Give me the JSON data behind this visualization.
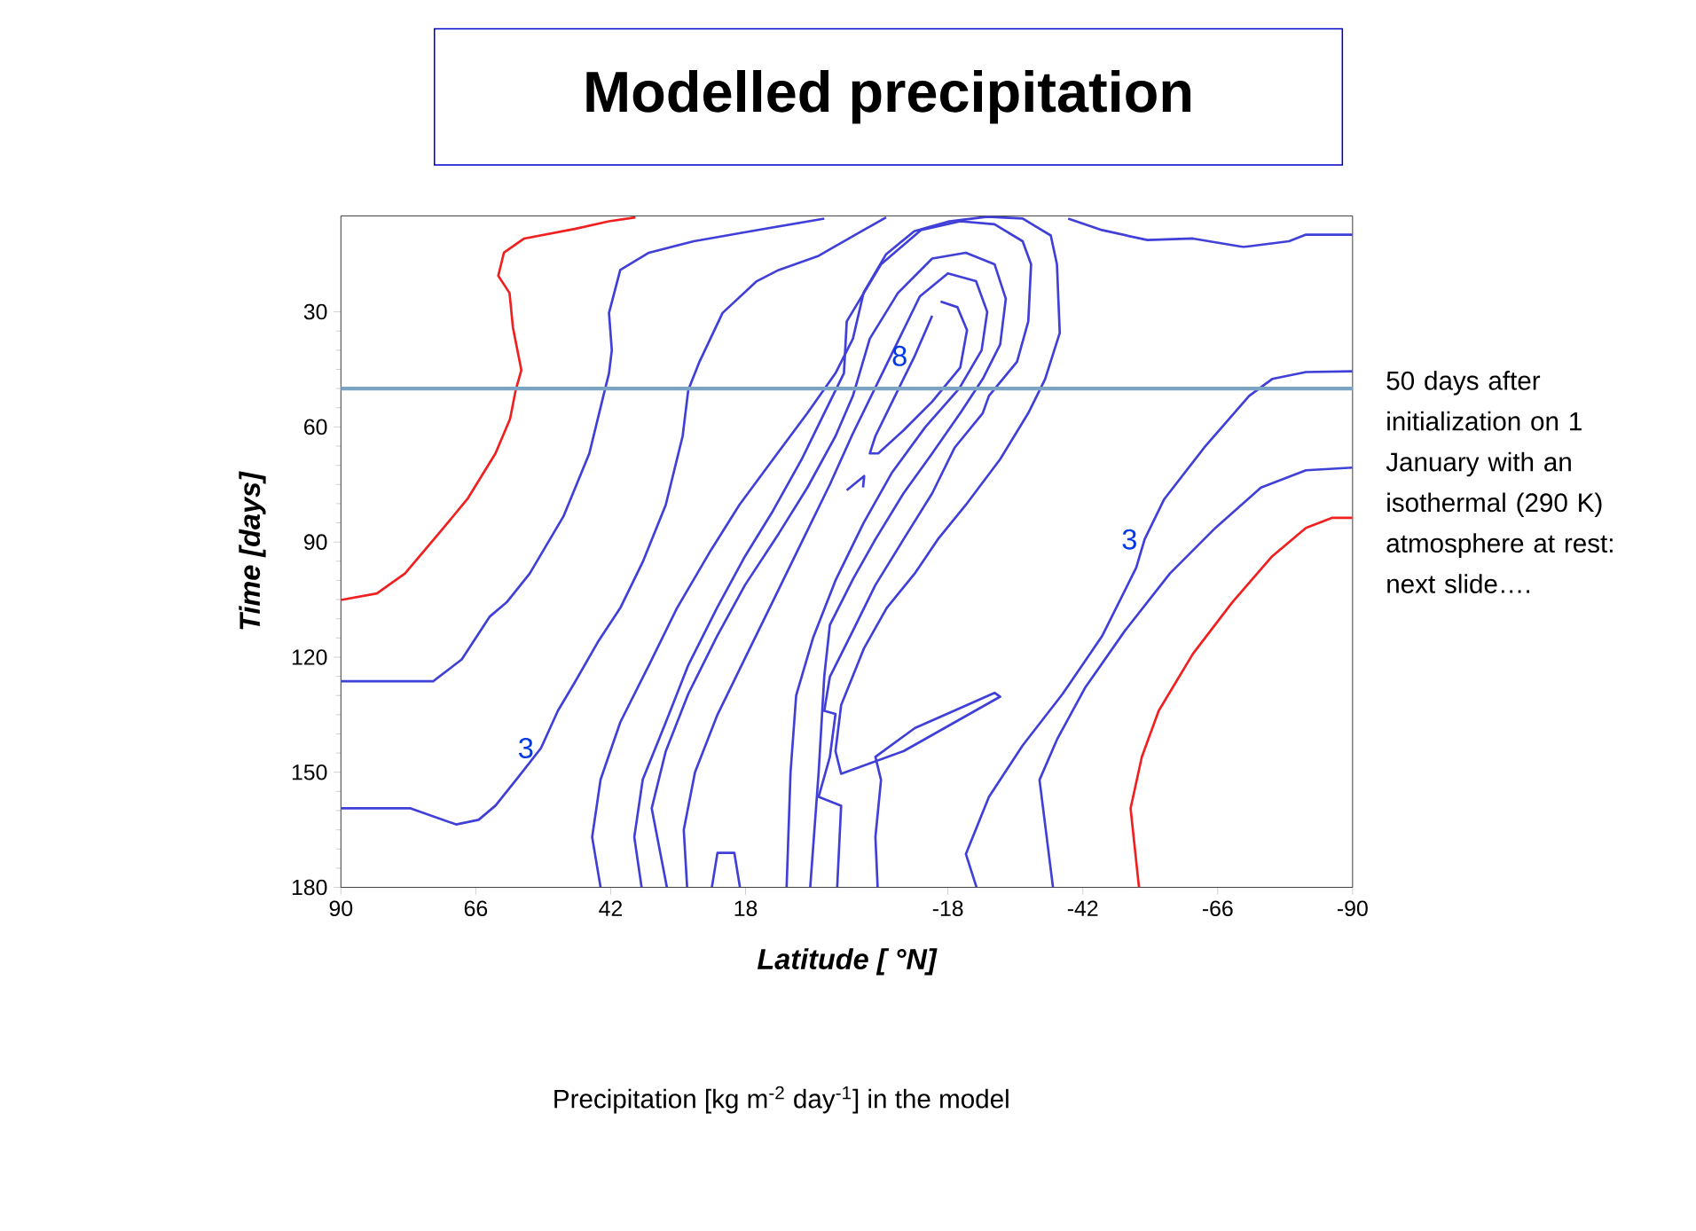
{
  "chart_data": {
    "type": "line",
    "title": "Modelled precipitation",
    "xlabel": "Latitude [ °N]",
    "ylabel": "Time [days]",
    "xlim": [
      90,
      -90
    ],
    "ylim": [
      180,
      5
    ],
    "xticks": [
      90,
      66,
      42,
      18,
      -18,
      -42,
      -66,
      -90
    ],
    "yticks": [
      30,
      60,
      90,
      120,
      150,
      180
    ],
    "series": [
      {
        "color": "#f02020",
        "x": [
          37.6,
          42.3,
          48.4,
          57.4,
          61.0,
          62.0,
          60.0,
          59.4,
          57.9,
          58.9,
          59.9,
          62.5,
          67.5,
          72.6,
          78.6,
          83.6,
          90
        ],
        "values": [
          5.4,
          6.4,
          8.4,
          10.9,
          14.6,
          20.6,
          25.1,
          34.0,
          45.2,
          50.4,
          57.9,
          66.9,
          78.8,
          87.8,
          98.2,
          103.4,
          105.1
        ]
      },
      {
        "color": "#4040d8",
        "x": [
          90,
          73.6,
          68.5,
          63.5,
          60.5,
          56.4,
          50.4,
          45.8,
          43.3,
          42.3,
          41.8,
          42.3,
          40.3,
          35.2,
          27.2,
          17.1,
          4.0
        ],
        "values": [
          126.3,
          126.3,
          120.6,
          109.4,
          105.7,
          98.2,
          83.3,
          66.9,
          51.9,
          46.0,
          40.0,
          30.3,
          19.1,
          14.6,
          11.6,
          9.0,
          5.7
        ]
      },
      {
        "color": "#4040d8",
        "x": [
          90,
          77.6,
          69.5,
          65.5,
          62.5,
          58.4,
          54.4,
          51.4,
          48.4,
          44.3,
          40.3,
          36.3,
          32.2,
          29.2,
          28.2,
          26.2,
          22.1,
          16.1,
          12.1,
          5.0,
          -3.0,
          -7.0
        ],
        "values": [
          159.4,
          159.4,
          163.6,
          162.4,
          158.7,
          151.2,
          143.7,
          134.0,
          126.6,
          116.1,
          107.2,
          95.2,
          80.3,
          62.4,
          50.4,
          43.0,
          30.3,
          22.1,
          19.1,
          15.4,
          8.7,
          5.4
        ]
      },
      {
        "color": "#4040d8",
        "x": [
          43.8,
          45.3,
          43.8,
          40.3,
          35.2,
          30.2,
          24.2,
          19.1,
          13.1,
          7.0,
          2.0,
          -1.1,
          -3,
          -7,
          -12,
          -18,
          -25,
          -31.3,
          -36.3,
          -37.4,
          -37.9,
          -35.3,
          -32.3,
          -27.3,
          -21.2,
          -16.2,
          -12.1,
          -7.1,
          -3.1,
          1,
          2,
          1,
          -10.1,
          -27.3,
          -26.3,
          -12.1,
          -5.1,
          -6.1,
          -5.1,
          -5.5
        ],
        "values": [
          180,
          166.9,
          151.9,
          137.0,
          122.1,
          107.2,
          92.2,
          80.3,
          68.4,
          56.4,
          46.0,
          37.0,
          25,
          15,
          9,
          6.5,
          5.2,
          5.7,
          10.1,
          17.6,
          35.5,
          47.5,
          56.4,
          68.4,
          80.3,
          89.3,
          98.2,
          107.2,
          117.6,
          132.5,
          144.5,
          150.4,
          144.5,
          130.3,
          129.3,
          138.5,
          146,
          152,
          166.9,
          180
        ]
      },
      {
        "color": "#4040d8",
        "x": [
          36.5,
          37.8,
          36.3,
          32.2,
          28.2,
          23.1,
          18.1,
          13.1,
          8.0,
          4.0,
          0.5,
          0,
          -6.1,
          -13.2,
          -20.2,
          -26.3,
          -31.3,
          -32.8,
          -32.3,
          -30.3,
          -25.3,
          -24.2,
          -19.2,
          -15.2,
          -10.1,
          -5.1,
          -1.1,
          3.0,
          4.0,
          2.0,
          3.0,
          5,
          1,
          1.7
        ],
        "values": [
          180,
          166.9,
          151.9,
          137,
          122.1,
          107.2,
          93.7,
          81.8,
          68.4,
          56.4,
          46,
          32.5,
          17.6,
          8.7,
          6.4,
          7.2,
          11.6,
          17.6,
          32.5,
          43,
          51.9,
          56.4,
          65.4,
          77.3,
          89.3,
          101.2,
          113.1,
          125.1,
          134,
          134.8,
          146,
          156.4,
          158.7,
          180
        ]
      },
      {
        "color": "#4040d8",
        "x": [
          32,
          34.7,
          32.2,
          28.2,
          23.1,
          18.1,
          12.1,
          7.0,
          2.0,
          -1.1,
          -4.1,
          -9.1,
          -15.2,
          -21.2,
          -26.3,
          -28.3,
          -27.3,
          -24.2,
          -20.2,
          -15.2,
          -10.1,
          -5.1,
          -1.1,
          3,
          4,
          5,
          6.5
        ],
        "values": [
          180,
          159.4,
          144.5,
          129.6,
          114.6,
          101.2,
          87.8,
          75.8,
          62.4,
          51.9,
          37,
          25.1,
          16.1,
          14.6,
          17.6,
          26.6,
          38.5,
          47.5,
          56.4,
          66.9,
          77.3,
          89.3,
          99.7,
          111.6,
          125,
          150,
          180
        ]
      },
      {
        "color": "#4040d8",
        "x": [
          28.4,
          29,
          27,
          23,
          18,
          13,
          8,
          3,
          -1,
          -5,
          -9,
          -13,
          -18,
          -23,
          -25,
          -24,
          -20,
          -14,
          -8,
          -3,
          2,
          6,
          9,
          10,
          10.7
        ],
        "values": [
          180,
          165,
          150,
          135,
          120,
          105,
          90,
          75,
          62,
          50,
          38,
          26,
          20,
          22,
          30,
          40,
          50,
          60,
          72,
          85,
          100,
          115,
          130,
          150,
          180
        ]
      },
      {
        "color": "#4040d8",
        "x": [
          24,
          23,
          20,
          19
        ],
        "values": [
          180,
          171,
          171,
          180
        ]
      },
      {
        "color": "#4040d8",
        "x": [
          -16.7,
          -19.7,
          -21.4,
          -20.2,
          -15.2,
          -10.1,
          -5.6,
          -4.1,
          -5.1,
          -8.1,
          -12.1,
          -15.2
        ],
        "values": [
          27.3,
          28.8,
          34.8,
          44.5,
          53.4,
          60.9,
          66.9,
          66.9,
          62.4,
          53.4,
          41.5,
          31.0
        ]
      },
      {
        "color": "#4040d8",
        "x": [
          0,
          -3.1,
          -2.9
        ],
        "values": [
          76.5,
          72.8,
          75.8
        ]
      },
      {
        "color": "#4040d8",
        "x": [
          -39.4,
          -45.4,
          -53.5,
          -61.6,
          -70.6,
          -78.7,
          -81.7,
          -90
        ],
        "values": [
          5.7,
          8.7,
          11.3,
          10.9,
          13.1,
          11.6,
          9.9,
          9.9
        ]
      },
      {
        "color": "#4040d8",
        "x": [
          -23.1,
          -21.2,
          -25.3,
          -31.3,
          -38.4,
          -45.4,
          -51.5,
          -53,
          -56.5,
          -63.6,
          -71.6,
          -75.7,
          -81.7,
          -90
        ],
        "values": [
          180,
          171.3,
          156.4,
          143,
          129.6,
          114.6,
          96.7,
          89.3,
          78.8,
          65.4,
          51.9,
          47.5,
          45.7,
          45.5
        ]
      },
      {
        "color": "#4040d8",
        "x": [
          -36.7,
          -34.3,
          -37.4,
          -42.4,
          -49.5,
          -57.5,
          -65.6,
          -73.7,
          -81.7,
          -90
        ],
        "values": [
          180,
          152,
          141.5,
          128,
          113.1,
          98.2,
          86.3,
          75.8,
          71.3,
          70.6
        ]
      },
      {
        "color": "#f02020",
        "x": [
          -52,
          -50.5,
          -52.5,
          -55.5,
          -61.6,
          -68.6,
          -75.7,
          -81.7,
          -86.3,
          -90
        ],
        "values": [
          180,
          159.4,
          146,
          134,
          119.1,
          105.7,
          93.7,
          86.3,
          83.7,
          83.7
        ]
      }
    ],
    "ref_lines": [
      {
        "axis": "y",
        "value": 50,
        "color": "#7ba3c4",
        "label": "50 days after initialization on 1 January with an isothermal (290 K) atmosphere at rest: next slide…."
      }
    ],
    "annotations": [
      {
        "text": "3",
        "x": 54.4,
        "y": 143.7
      },
      {
        "text": "8",
        "x": -12.1,
        "y": 41.5
      },
      {
        "text": "3",
        "x": -53,
        "y": 89.3
      },
      "Precipitation [kg m$^{-2}$ day$^{-1}$] in the model"
    ]
  }
}
